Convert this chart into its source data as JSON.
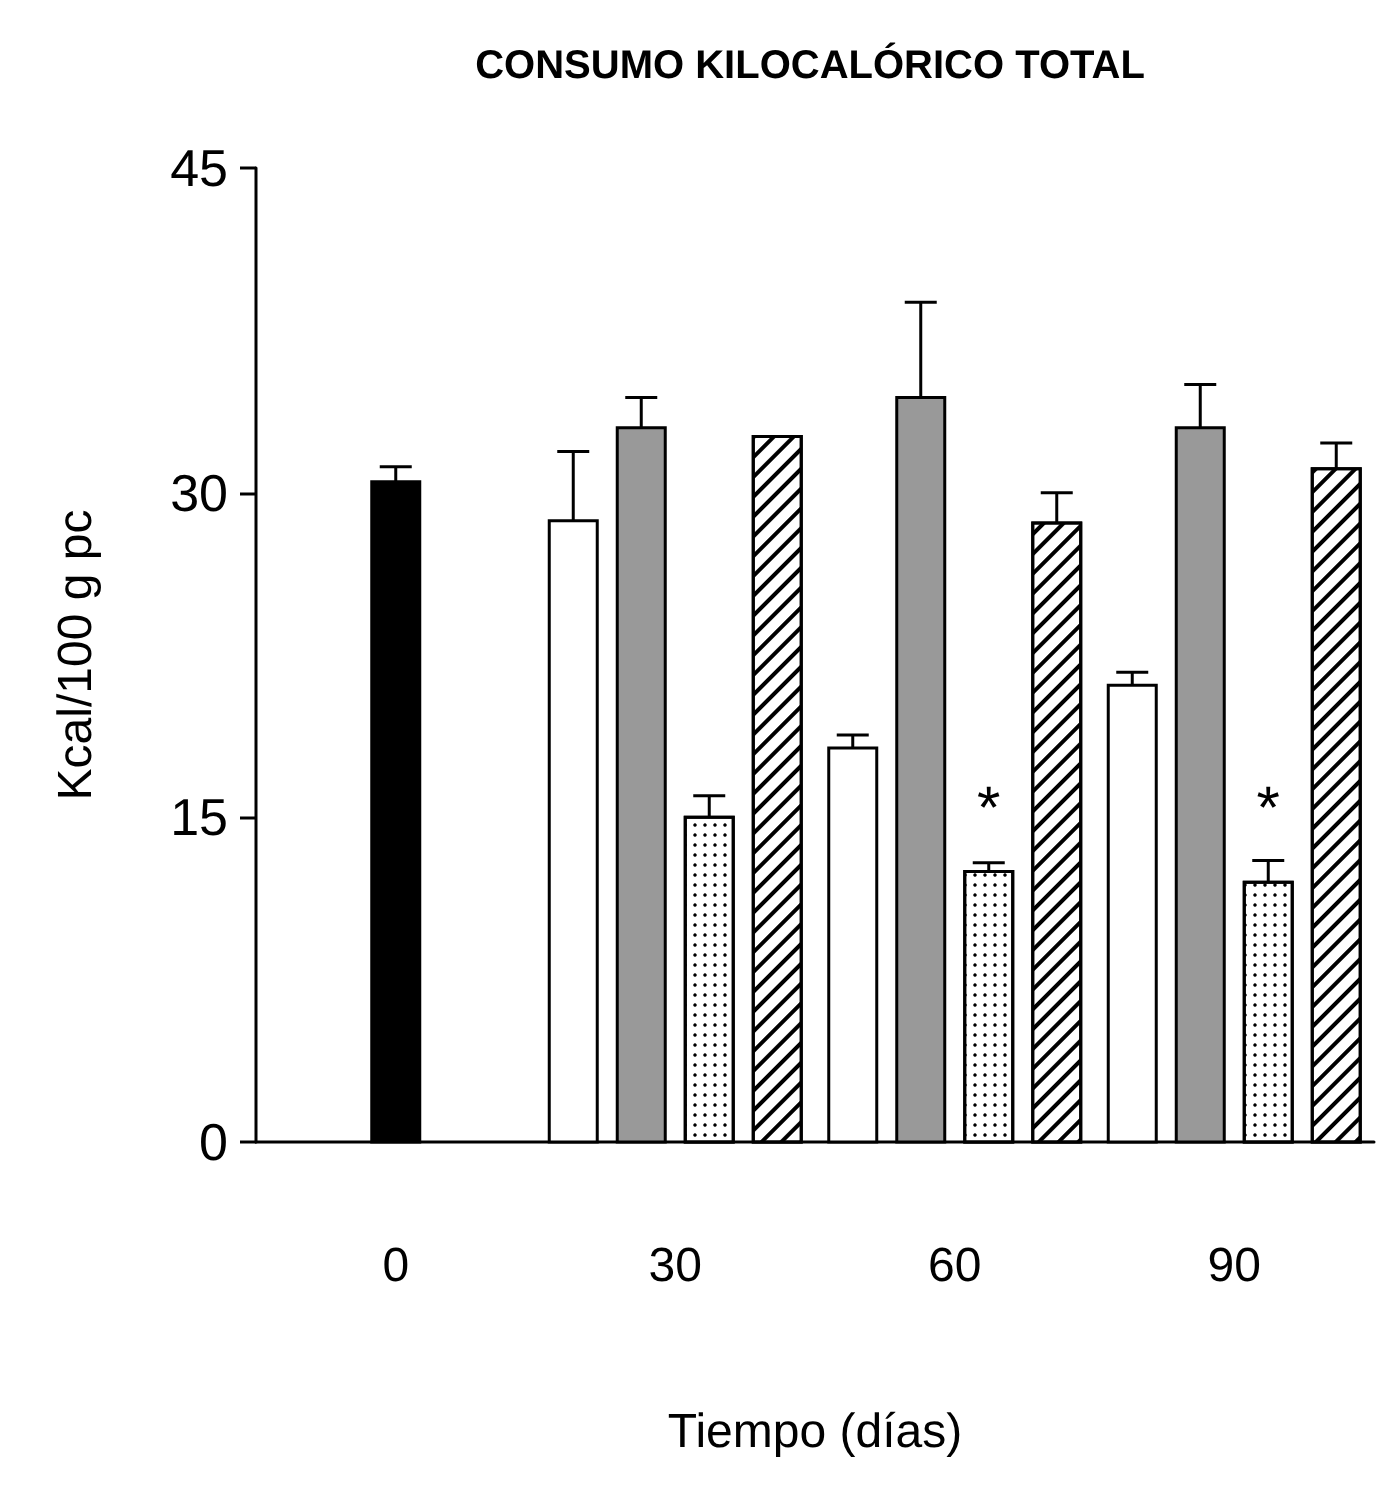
{
  "chart_data": {
    "type": "bar",
    "title": "CONSUMO KILOCALÓRICO TOTAL",
    "xlabel": "Tiempo (días)",
    "ylabel": "Kcal/100 g pc",
    "categories": [
      "0",
      "30",
      "60",
      "90"
    ],
    "series": [
      {
        "color": "#000000",
        "values": [
          30.5,
          null,
          null,
          null
        ],
        "errors": [
          0.7,
          null,
          null,
          null
        ]
      },
      {
        "color": "#ffffff",
        "values": [
          null,
          28.7,
          18.2,
          21.1
        ],
        "errors": [
          null,
          3.2,
          0.6,
          0.6
        ]
      },
      {
        "color": "#999999",
        "values": [
          null,
          33.0,
          34.4,
          33.0
        ],
        "errors": [
          null,
          1.4,
          4.4,
          2.0
        ]
      },
      {
        "color": "#ffffff",
        "values": [
          null,
          15.0,
          12.5,
          12.0
        ],
        "errors": [
          null,
          1.0,
          0.4,
          1.0
        ]
      },
      {
        "color": "#ffffff",
        "values": [
          null,
          32.6,
          28.6,
          31.1
        ],
        "errors": [
          null,
          null,
          1.4,
          1.2
        ]
      }
    ],
    "ylim": [
      0,
      45
    ],
    "yticks": [
      0,
      15,
      30,
      45
    ],
    "grid": false,
    "annotations": [
      {
        "text": "*",
        "x": "60",
        "y": 14
      },
      {
        "text": "*",
        "x": "90",
        "y": 14
      }
    ]
  }
}
